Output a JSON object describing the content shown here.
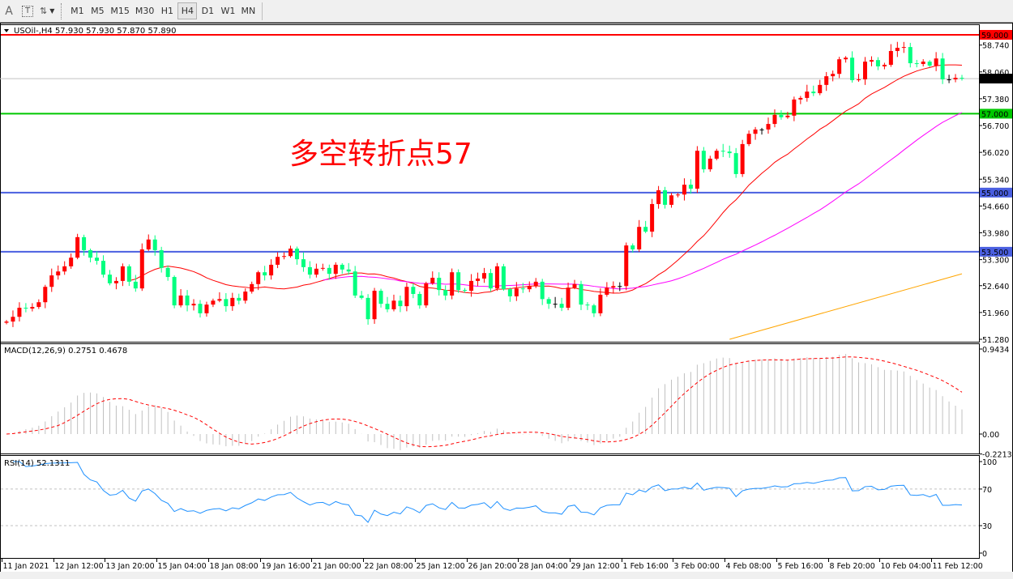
{
  "toolbar": {
    "tools": [
      {
        "name": "text-tool",
        "glyph": "A"
      },
      {
        "name": "text-label-tool",
        "glyph": "T"
      },
      {
        "name": "arrows-tool",
        "glyph": "⇅"
      }
    ],
    "timeframes": [
      "M1",
      "M5",
      "M15",
      "M30",
      "H1",
      "H4",
      "D1",
      "W1",
      "MN"
    ],
    "active_timeframe": "H4"
  },
  "chart_data": {
    "type": "candlestick",
    "header": "USOil-,H4  57.930 57.930 57.870 57.890",
    "annotation": "多空转折点57",
    "ylim": [
      51.28,
      59.0
    ],
    "y_tick_labels": [
      "58.740",
      "58.060",
      "57.380",
      "56.700",
      "56.020",
      "55.340",
      "54.660",
      "53.980",
      "53.300",
      "52.640",
      "51.960",
      "51.280"
    ],
    "x_tick_labels": [
      "11 Jan 2021",
      "12 Jan 12:00",
      "13 Jan 20:00",
      "15 Jan 04:00",
      "18 Jan 08:00",
      "19 Jan 16:00",
      "21 Jan 00:00",
      "22 Jan 08:00",
      "25 Jan 12:00",
      "26 Jan 20:00",
      "28 Jan 04:00",
      "29 Jan 12:00",
      "1 Feb 16:00",
      "3 Feb 00:00",
      "4 Feb 08:00",
      "5 Feb 16:00",
      "8 Feb 20:00",
      "10 Feb 04:00",
      "11 Feb 12:00"
    ],
    "closes": [
      51.73,
      51.85,
      52.08,
      52.06,
      52.1,
      52.22,
      52.61,
      52.9,
      53.0,
      53.13,
      53.35,
      53.87,
      53.54,
      53.35,
      53.27,
      52.92,
      52.7,
      52.76,
      53.13,
      52.74,
      52.57,
      53.56,
      53.81,
      53.54,
      53.09,
      52.86,
      52.14,
      52.39,
      52.14,
      52.18,
      51.94,
      52.16,
      52.26,
      52.3,
      52.12,
      52.33,
      52.26,
      52.49,
      52.68,
      52.98,
      52.9,
      53.17,
      53.37,
      53.39,
      53.58,
      53.31,
      53.11,
      52.92,
      53.07,
      53.09,
      52.94,
      53.17,
      53.05,
      53.0,
      52.39,
      52.33,
      51.79,
      52.51,
      52.18,
      52.04,
      52.26,
      52.12,
      52.61,
      52.43,
      52.14,
      52.7,
      52.84,
      52.53,
      52.39,
      52.98,
      52.53,
      52.51,
      52.76,
      52.82,
      52.96,
      52.57,
      53.13,
      52.55,
      52.37,
      52.57,
      52.55,
      52.63,
      52.74,
      52.3,
      52.18,
      52.18,
      52.08,
      52.59,
      52.68,
      52.16,
      52.14,
      51.94,
      52.41,
      52.59,
      52.63,
      52.63,
      53.66,
      53.56,
      54.13,
      54.01,
      54.71,
      55.06,
      54.69,
      54.93,
      54.95,
      55.2,
      55.1,
      56.06,
      55.59,
      55.86,
      56.06,
      56.04,
      56.0,
      55.47,
      56.23,
      56.49,
      56.6,
      56.6,
      56.74,
      56.97,
      56.91,
      56.95,
      57.36,
      57.4,
      57.56,
      57.52,
      57.73,
      57.95,
      58.01,
      58.38,
      58.42,
      57.85,
      57.87,
      58.32,
      58.36,
      58.2,
      58.24,
      58.59,
      58.67,
      58.69,
      58.28,
      58.26,
      58.32,
      58.22,
      58.4,
      57.87,
      57.87,
      57.91,
      57.89
    ],
    "candle_colors": {
      "up": "#ff0000",
      "down": "#00ff7f",
      "doji": "#000000"
    },
    "moving_averages": [
      {
        "period": 20,
        "color": "#ff0000"
      },
      {
        "period": 50,
        "color": "#ff00ff"
      },
      {
        "color": "#ffa500",
        "values": [
          [
            112,
            51.28
          ],
          [
            148,
            52.94
          ]
        ]
      }
    ],
    "horizontal_lines": [
      {
        "price": 59.0,
        "label": "59.000",
        "color": "#ff0000"
      },
      {
        "price": 57.0,
        "label": "57.000",
        "color": "#00c800"
      },
      {
        "price": 55.0,
        "label": "55.000",
        "color": "#4a5fe0"
      },
      {
        "price": 53.5,
        "label": "53.500",
        "color": "#4a5fe0"
      }
    ],
    "current_price": {
      "price": 57.89,
      "label": "57.890",
      "color": "#c0c0c0"
    },
    "macd": {
      "label": "MACD(12,26,9) 0.2751 0.4678",
      "ylim": [
        -0.2213,
        0.9434
      ],
      "tick_labels": [
        {
          "value": 0.9434,
          "text": "0.9434"
        },
        {
          "value": 0.0,
          "text": "0.00"
        },
        {
          "value": -0.2213,
          "text": "-0.2213"
        }
      ],
      "histogram_color": "#c0c0c0",
      "signal_color": "#ff0000"
    },
    "rsi": {
      "label": "RSI(14) 52.1311",
      "ylim": [
        0,
        100
      ],
      "levels": [
        70,
        30
      ],
      "tick_labels": [
        {
          "value": 100,
          "text": "100"
        },
        {
          "value": 70,
          "text": "70"
        },
        {
          "value": 30,
          "text": "30"
        },
        {
          "value": 0,
          "text": "0"
        }
      ],
      "color": "#1e90ff"
    }
  }
}
